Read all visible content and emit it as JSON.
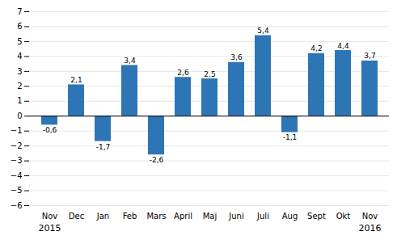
{
  "chart_data": {
    "type": "bar",
    "categories": [
      "Nov",
      "Dec",
      "Jan",
      "Feb",
      "Mars",
      "April",
      "Maj",
      "Juni",
      "Juli",
      "Aug",
      "Sept",
      "Okt",
      "Nov"
    ],
    "values": [
      -0.6,
      2.1,
      -1.7,
      3.4,
      -2.6,
      2.6,
      2.5,
      3.6,
      5.4,
      -1.1,
      4.2,
      4.4,
      3.7
    ],
    "value_labels": [
      "-0,6",
      "2,1",
      "-1,7",
      "3,4",
      "-2,6",
      "2,6",
      "2,5",
      "3,6",
      "5,4",
      "-1,1",
      "4,2",
      "4,4",
      "3,7"
    ],
    "data_labels": true,
    "color": "#2E75B6",
    "ylim": [
      -6,
      7
    ],
    "yticks": [
      -6,
      -5,
      -4,
      -3,
      -2,
      -1,
      0,
      1,
      2,
      3,
      4,
      5,
      6,
      7
    ],
    "grid": true,
    "annotations": [
      {
        "text": "2015",
        "x": 0
      },
      {
        "text": "2016",
        "x": 12
      }
    ]
  }
}
